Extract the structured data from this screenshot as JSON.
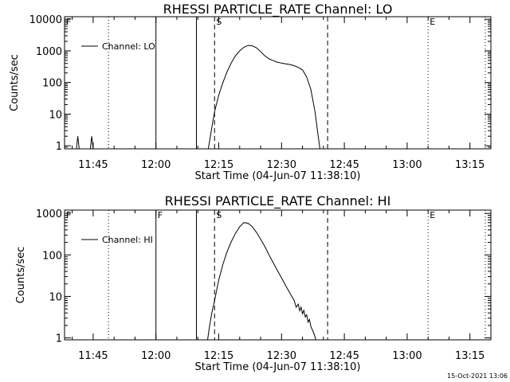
{
  "footer": {
    "timestamp": "15-Oct-2021 13:06"
  },
  "style": {
    "line_color": "#000000",
    "background": "#ffffff"
  },
  "chart_data": [
    {
      "type": "line",
      "title": "RHESSI PARTICLE_RATE Channel: LO",
      "xlabel": "Start Time (04-Jun-07 11:38:10)",
      "ylabel": "Counts/sec",
      "xlim": [
        "11:38:10",
        "13:20:00"
      ],
      "ylim": [
        0.8,
        12000
      ],
      "yscale": "log",
      "yticks": [
        {
          "v": 1,
          "label": "1"
        },
        {
          "v": 10,
          "label": "10"
        },
        {
          "v": 100,
          "label": "100"
        },
        {
          "v": 1000,
          "label": "1000"
        },
        {
          "v": 10000,
          "label": "10000"
        }
      ],
      "xticks": [
        "11:45",
        "12:00",
        "12:15",
        "12:30",
        "12:45",
        "13:00",
        "13:15"
      ],
      "legend": {
        "label": "Channel: LO",
        "placement": "top-left"
      },
      "markers": [
        {
          "time": "11:38:10",
          "label": "F",
          "style": "dotted"
        },
        {
          "time": "11:48:40",
          "label": "",
          "style": "dotted"
        },
        {
          "time": "12:00:00",
          "label": "",
          "style": "solid"
        },
        {
          "time": "12:09:40",
          "label": "",
          "style": "solid"
        },
        {
          "time": "12:14:00",
          "label": "S",
          "style": "dashed"
        },
        {
          "time": "12:41:00",
          "label": "",
          "style": "dashed"
        },
        {
          "time": "13:05:00",
          "label": "E",
          "style": "dotted"
        },
        {
          "time": "13:18:40",
          "label": "",
          "style": "dotted"
        }
      ],
      "series": [
        {
          "name": "Channel: LO",
          "points": [
            [
              "11:38:10",
              0.8
            ],
            [
              "11:41:00",
              0.8
            ],
            [
              "11:41:20",
              2
            ],
            [
              "11:41:40",
              0.8
            ],
            [
              "11:44:20",
              0.8
            ],
            [
              "11:44:40",
              2
            ],
            [
              "11:45:00",
              0.8
            ],
            [
              "12:12:30",
              0.8
            ],
            [
              "12:13:00",
              2
            ],
            [
              "12:13:30",
              5
            ],
            [
              "12:14:00",
              12
            ],
            [
              "12:15:00",
              40
            ],
            [
              "12:16:00",
              100
            ],
            [
              "12:17:00",
              220
            ],
            [
              "12:18:00",
              420
            ],
            [
              "12:19:00",
              700
            ],
            [
              "12:20:00",
              1000
            ],
            [
              "12:21:00",
              1300
            ],
            [
              "12:22:00",
              1480
            ],
            [
              "12:23:00",
              1450
            ],
            [
              "12:24:00",
              1250
            ],
            [
              "12:25:00",
              950
            ],
            [
              "12:26:00",
              700
            ],
            [
              "12:27:00",
              560
            ],
            [
              "12:28:00",
              490
            ],
            [
              "12:29:00",
              440
            ],
            [
              "12:30:00",
              410
            ],
            [
              "12:31:00",
              390
            ],
            [
              "12:32:00",
              370
            ],
            [
              "12:33:00",
              340
            ],
            [
              "12:34:00",
              300
            ],
            [
              "12:35:00",
              250
            ],
            [
              "12:36:00",
              150
            ],
            [
              "12:37:00",
              60
            ],
            [
              "12:38:00",
              12
            ],
            [
              "12:38:40",
              2.5
            ],
            [
              "12:39:10",
              0.8
            ]
          ]
        }
      ]
    },
    {
      "type": "line",
      "title": "RHESSI PARTICLE_RATE Channel: HI",
      "xlabel": "Start Time (04-Jun-07 11:38:10)",
      "ylabel": "Counts/sec",
      "xlim": [
        "11:38:10",
        "13:20:00"
      ],
      "ylim": [
        0.9,
        1200
      ],
      "yscale": "log",
      "yticks": [
        {
          "v": 1,
          "label": "1"
        },
        {
          "v": 10,
          "label": "10"
        },
        {
          "v": 100,
          "label": "100"
        },
        {
          "v": 1000,
          "label": "1000"
        }
      ],
      "xticks": [
        "11:45",
        "12:00",
        "12:15",
        "12:30",
        "12:45",
        "13:00",
        "13:15"
      ],
      "legend": {
        "label": "Channel: HI",
        "placement": "top-left"
      },
      "markers": [
        {
          "time": "11:38:10",
          "label": "F",
          "style": "dotted"
        },
        {
          "time": "11:48:40",
          "label": "",
          "style": "dotted"
        },
        {
          "time": "12:00:00",
          "label": "F",
          "style": "solid"
        },
        {
          "time": "12:09:40",
          "label": "",
          "style": "solid"
        },
        {
          "time": "12:14:00",
          "label": "S",
          "style": "dashed"
        },
        {
          "time": "12:41:00",
          "label": "",
          "style": "dashed"
        },
        {
          "time": "13:05:00",
          "label": "E",
          "style": "dotted"
        },
        {
          "time": "13:18:40",
          "label": "",
          "style": "dotted"
        }
      ],
      "series": [
        {
          "name": "Channel: HI",
          "points": [
            [
              "12:12:20",
              0.9
            ],
            [
              "12:12:50",
              2
            ],
            [
              "12:13:20",
              4
            ],
            [
              "12:14:00",
              8
            ],
            [
              "12:15:00",
              25
            ],
            [
              "12:16:00",
              60
            ],
            [
              "12:17:00",
              120
            ],
            [
              "12:18:00",
              210
            ],
            [
              "12:19:00",
              330
            ],
            [
              "12:20:00",
              480
            ],
            [
              "12:21:00",
              600
            ],
            [
              "12:22:00",
              580
            ],
            [
              "12:23:00",
              480
            ],
            [
              "12:24:00",
              350
            ],
            [
              "12:25:00",
              240
            ],
            [
              "12:26:00",
              160
            ],
            [
              "12:27:00",
              100
            ],
            [
              "12:28:00",
              65
            ],
            [
              "12:29:00",
              42
            ],
            [
              "12:30:00",
              28
            ],
            [
              "12:31:00",
              18
            ],
            [
              "12:32:00",
              12
            ],
            [
              "12:33:00",
              8
            ],
            [
              "12:33:30",
              5.5
            ],
            [
              "12:34:00",
              6.5
            ],
            [
              "12:34:20",
              4.5
            ],
            [
              "12:34:40",
              5.5
            ],
            [
              "12:35:00",
              3.8
            ],
            [
              "12:35:20",
              4.6
            ],
            [
              "12:35:40",
              3.2
            ],
            [
              "12:36:00",
              3.6
            ],
            [
              "12:36:20",
              2.4
            ],
            [
              "12:36:40",
              2.8
            ],
            [
              "12:37:00",
              1.9
            ],
            [
              "12:37:20",
              1.6
            ],
            [
              "12:37:50",
              1.2
            ],
            [
              "12:38:10",
              0.9
            ]
          ]
        }
      ]
    }
  ]
}
